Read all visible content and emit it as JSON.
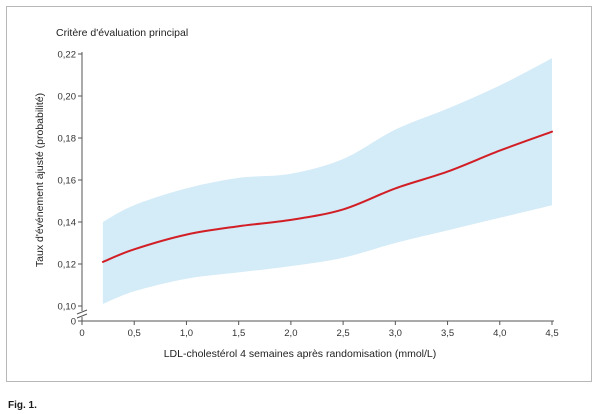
{
  "figure": {
    "caption": "Fig. 1."
  },
  "chart_data": {
    "type": "line",
    "title": "Critère d'évaluation principal",
    "xlabel": "LDL-cholestérol 4 semaines après randomisation (mmol/L)",
    "ylabel": "Taux d'événement ajusté (probabilité)",
    "xlim": [
      0,
      4.5
    ],
    "ylim": [
      0.1,
      0.22
    ],
    "y_axis_break": true,
    "x_ticks": [
      0,
      0.5,
      1.0,
      1.5,
      2.0,
      2.5,
      3.0,
      3.5,
      4.0,
      4.5
    ],
    "x_tick_labels": [
      "0",
      "0,5",
      "1,0",
      "1,5",
      "2,0",
      "2,5",
      "3,0",
      "3,5",
      "4,0",
      "4,5"
    ],
    "y_ticks": [
      0.1,
      0.12,
      0.14,
      0.16,
      0.18,
      0.2,
      0.22
    ],
    "y_tick_labels": [
      "0,10",
      "0,12",
      "0,14",
      "0,16",
      "0,18",
      "0,20",
      "0,22"
    ],
    "y_zero_label": "0",
    "grid": false,
    "x": [
      0.2,
      0.5,
      1.0,
      1.5,
      2.0,
      2.5,
      3.0,
      3.5,
      4.0,
      4.5
    ],
    "series": [
      {
        "values": [
          0.121,
          0.127,
          0.134,
          0.138,
          0.141,
          0.146,
          0.156,
          0.164,
          0.174,
          0.183
        ],
        "lower": [
          0.101,
          0.107,
          0.113,
          0.116,
          0.119,
          0.123,
          0.13,
          0.136,
          0.142,
          0.148
        ],
        "upper": [
          0.14,
          0.148,
          0.156,
          0.161,
          0.163,
          0.17,
          0.184,
          0.194,
          0.205,
          0.218
        ],
        "color": "#d21f26",
        "band_color": "#d4ebf8"
      }
    ]
  }
}
